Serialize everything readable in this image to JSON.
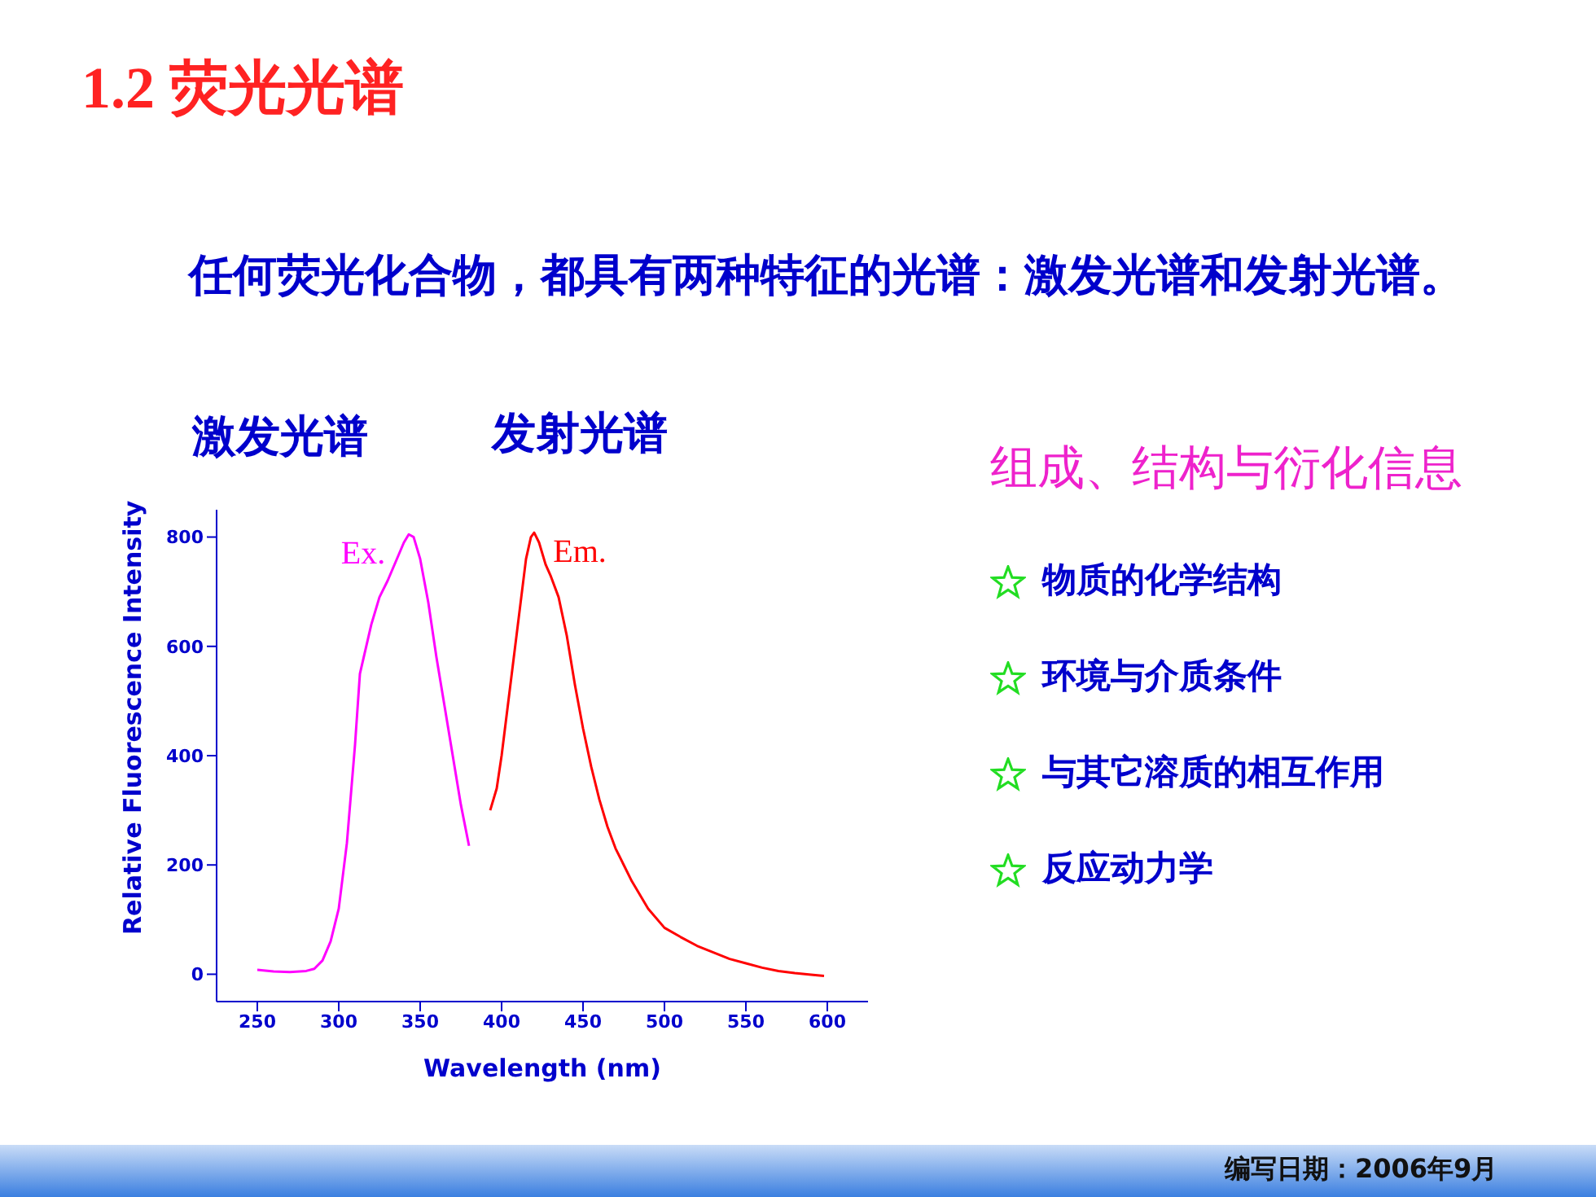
{
  "chart_data": {
    "type": "line",
    "title": "1.2 荧光光谱",
    "subtitle": "任何荧光化合物，都具有两种特征的光谱：激发光谱和发射光谱。",
    "xlabel": "Wavelength (nm)",
    "ylabel": "Relative Fluorescence Intensity",
    "xlim": [
      225,
      625
    ],
    "xticks": [
      250,
      300,
      350,
      400,
      450,
      500,
      550,
      600
    ],
    "ylim": [
      -50,
      850
    ],
    "yticks": [
      0,
      200,
      400,
      600,
      800
    ],
    "grid": false,
    "legend": false,
    "marker": "none",
    "line_style": "solid",
    "series": [
      {
        "name": "Ex.",
        "color": "#ff00ff",
        "x": [
          250,
          260,
          270,
          280,
          285,
          290,
          295,
          300,
          305,
          310,
          313,
          320,
          325,
          330,
          335,
          340,
          343,
          346,
          350,
          355,
          360,
          365,
          370,
          375,
          380
        ],
        "values": [
          8,
          5,
          4,
          6,
          10,
          25,
          60,
          120,
          240,
          420,
          550,
          640,
          690,
          720,
          755,
          790,
          805,
          800,
          760,
          680,
          580,
          490,
          400,
          310,
          235
        ]
      },
      {
        "name": "Em.",
        "color": "#ff0000",
        "x": [
          393,
          397,
          400,
          405,
          410,
          415,
          418,
          420,
          423,
          427,
          430,
          435,
          440,
          445,
          450,
          455,
          460,
          465,
          470,
          475,
          480,
          490,
          500,
          510,
          520,
          530,
          540,
          550,
          560,
          570,
          580,
          590,
          598
        ],
        "values": [
          300,
          340,
          400,
          520,
          640,
          760,
          800,
          808,
          790,
          750,
          730,
          690,
          620,
          530,
          450,
          380,
          320,
          270,
          230,
          200,
          170,
          120,
          85,
          68,
          52,
          40,
          28,
          20,
          12,
          6,
          2,
          -1,
          -3
        ]
      }
    ],
    "annotations": [
      "激发光谱",
      "发射光谱",
      "组成、结构与衍化信息",
      "物质的化学结构",
      "环境与介质条件",
      "与其它溶质的相互作用",
      "反应动力学",
      "编写日期：2006年9月"
    ]
  }
}
